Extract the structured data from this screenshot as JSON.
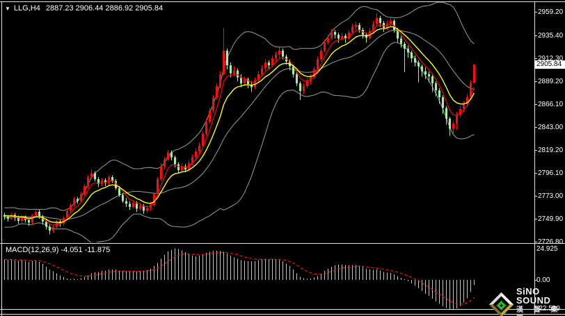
{
  "title": {
    "icon": "▼",
    "symbol_period": "LLG,H4",
    "ohlc_text": "2887.23 2906.44 2886.92 2905.84"
  },
  "macd_panel": {
    "label": "MACD(12,26,9) -4.051 -11.875",
    "scale_max": "24.925",
    "scale_zero": "0.00",
    "scale_min": "-22.529"
  },
  "price_axis": {
    "ticks": [
      "2959.20",
      "2935.40",
      "2912.30",
      "2889.20",
      "2866.10",
      "2843.00",
      "2819.20",
      "2796.10",
      "2773.00",
      "2749.90",
      "2726.80"
    ],
    "current": "2905.84"
  },
  "watermark": {
    "brand_en": "SiNO SOUND",
    "brand_cn": "漢 聲 集 團"
  },
  "colors": {
    "bg": "#000000",
    "up_candle": "#FF0B0B",
    "down_candle": "#9CF2A0",
    "ma_fast": "#FF0000",
    "ma_slow": "#FFFF00",
    "band": "#8F8F8F",
    "hist": "#C8C8C8",
    "signal": "#FF1111",
    "axis_text": "#FFFFFF",
    "frame": "#E6E6E6",
    "price_tag_bg": "#FFFFFF",
    "price_tag_text": "#000000"
  },
  "chart_data": {
    "type": "candlestick",
    "symbol": "LLG",
    "timeframe": "H4",
    "last_bar": {
      "open": 2887.23,
      "high": 2906.44,
      "low": 2886.92,
      "close": 2905.84
    },
    "price_axis": {
      "max": 2959.2,
      "min": 2726.8
    },
    "macd_axis": {
      "max": 24.925,
      "zero": 0.0,
      "min": -22.529
    },
    "indicators": {
      "bollinger_period": 20,
      "bollinger_dev": 2,
      "ma_fast_period": 5,
      "ma_slow_period": 10,
      "macd_params": [
        12,
        26,
        9
      ],
      "macd_value": -4.051,
      "macd_signal": -11.875
    },
    "history_closes": [
      2768,
      2765,
      2770,
      2762,
      2758,
      2763,
      2755,
      2748,
      2752,
      2745,
      2740,
      2746,
      2752,
      2757,
      2750,
      2744,
      2748,
      2754,
      2758,
      2753,
      2749,
      2755,
      2760,
      2756,
      2751,
      2754
    ],
    "candles": [
      [
        2754,
        2756,
        2749,
        2752
      ],
      [
        2752,
        2754,
        2747,
        2750
      ],
      [
        2750,
        2756,
        2749,
        2754
      ],
      [
        2754,
        2756,
        2748,
        2751
      ],
      [
        2751,
        2753,
        2745,
        2748
      ],
      [
        2748,
        2754,
        2746,
        2752
      ],
      [
        2752,
        2753,
        2746,
        2749
      ],
      [
        2749,
        2751,
        2743,
        2746
      ],
      [
        2746,
        2755,
        2744,
        2753
      ],
      [
        2753,
        2760,
        2751,
        2757
      ],
      [
        2757,
        2759,
        2750,
        2752
      ],
      [
        2752,
        2754,
        2744,
        2747
      ],
      [
        2747,
        2749,
        2739,
        2742
      ],
      [
        2742,
        2744,
        2734,
        2738
      ],
      [
        2738,
        2744,
        2736,
        2742
      ],
      [
        2742,
        2749,
        2740,
        2747
      ],
      [
        2747,
        2749,
        2742,
        2745
      ],
      [
        2745,
        2753,
        2743,
        2751
      ],
      [
        2751,
        2760,
        2749,
        2758
      ],
      [
        2758,
        2766,
        2756,
        2764
      ],
      [
        2764,
        2772,
        2762,
        2770
      ],
      [
        2770,
        2772,
        2765,
        2768
      ],
      [
        2768,
        2777,
        2766,
        2775
      ],
      [
        2775,
        2785,
        2773,
        2783
      ],
      [
        2783,
        2794,
        2781,
        2792
      ],
      [
        2792,
        2800,
        2790,
        2796
      ],
      [
        2796,
        2798,
        2788,
        2790
      ],
      [
        2790,
        2792,
        2782,
        2785
      ],
      [
        2785,
        2791,
        2783,
        2789
      ],
      [
        2789,
        2791,
        2783,
        2786
      ],
      [
        2786,
        2794,
        2784,
        2792
      ],
      [
        2792,
        2794,
        2786,
        2788
      ],
      [
        2788,
        2790,
        2779,
        2781
      ],
      [
        2781,
        2783,
        2772,
        2774
      ],
      [
        2774,
        2776,
        2766,
        2768
      ],
      [
        2768,
        2771,
        2762,
        2765
      ],
      [
        2765,
        2768,
        2759,
        2762
      ],
      [
        2762,
        2768,
        2760,
        2766
      ],
      [
        2766,
        2768,
        2757,
        2760
      ],
      [
        2760,
        2766,
        2758,
        2763
      ],
      [
        2763,
        2765,
        2755,
        2758
      ],
      [
        2758,
        2764,
        2756,
        2761
      ],
      [
        2761,
        2767,
        2758,
        2764
      ],
      [
        2764,
        2777,
        2762,
        2775
      ],
      [
        2775,
        2792,
        2773,
        2790
      ],
      [
        2790,
        2806,
        2788,
        2803
      ],
      [
        2803,
        2812,
        2800,
        2810
      ],
      [
        2810,
        2820,
        2808,
        2817
      ],
      [
        2817,
        2819,
        2809,
        2812
      ],
      [
        2812,
        2814,
        2802,
        2805
      ],
      [
        2805,
        2807,
        2796,
        2799
      ],
      [
        2799,
        2806,
        2797,
        2803
      ],
      [
        2803,
        2805,
        2797,
        2800
      ],
      [
        2800,
        2809,
        2798,
        2806
      ],
      [
        2806,
        2815,
        2804,
        2812
      ],
      [
        2812,
        2821,
        2810,
        2818
      ],
      [
        2818,
        2827,
        2816,
        2824
      ],
      [
        2824,
        2839,
        2822,
        2836
      ],
      [
        2836,
        2851,
        2834,
        2848
      ],
      [
        2848,
        2862,
        2846,
        2859
      ],
      [
        2859,
        2875,
        2857,
        2872
      ],
      [
        2872,
        2887,
        2870,
        2884
      ],
      [
        2884,
        2899,
        2882,
        2896
      ],
      [
        2896,
        2943,
        2894,
        2920
      ],
      [
        2920,
        2922,
        2901,
        2905
      ],
      [
        2905,
        2908,
        2893,
        2897
      ],
      [
        2897,
        2904,
        2894,
        2900
      ],
      [
        2900,
        2902,
        2889,
        2893
      ],
      [
        2893,
        2896,
        2883,
        2887
      ],
      [
        2887,
        2894,
        2884,
        2891
      ],
      [
        2891,
        2893,
        2882,
        2886
      ],
      [
        2886,
        2889,
        2878,
        2883
      ],
      [
        2883,
        2893,
        2881,
        2890
      ],
      [
        2890,
        2899,
        2888,
        2896
      ],
      [
        2896,
        2905,
        2894,
        2902
      ],
      [
        2902,
        2911,
        2900,
        2908
      ],
      [
        2908,
        2910,
        2901,
        2905
      ],
      [
        2905,
        2915,
        2903,
        2912
      ],
      [
        2912,
        2919,
        2909,
        2916
      ],
      [
        2916,
        2923,
        2913,
        2920
      ],
      [
        2920,
        2922,
        2911,
        2914
      ],
      [
        2914,
        2916,
        2906,
        2909
      ],
      [
        2909,
        2911,
        2900,
        2904
      ],
      [
        2904,
        2906,
        2893,
        2896
      ],
      [
        2896,
        2898,
        2884,
        2887
      ],
      [
        2887,
        2889,
        2870,
        2879
      ],
      [
        2879,
        2887,
        2876,
        2884
      ],
      [
        2884,
        2892,
        2882,
        2889
      ],
      [
        2889,
        2896,
        2886,
        2893
      ],
      [
        2893,
        2904,
        2891,
        2901
      ],
      [
        2901,
        2914,
        2899,
        2911
      ],
      [
        2911,
        2923,
        2909,
        2920
      ],
      [
        2920,
        2931,
        2918,
        2928
      ],
      [
        2928,
        2936,
        2926,
        2933
      ],
      [
        2933,
        2942,
        2931,
        2939
      ],
      [
        2939,
        2941,
        2932,
        2936
      ],
      [
        2936,
        2938,
        2928,
        2932
      ],
      [
        2932,
        2938,
        2930,
        2935
      ],
      [
        2935,
        2937,
        2928,
        2932
      ],
      [
        2932,
        2941,
        2930,
        2938
      ],
      [
        2938,
        2947,
        2936,
        2944
      ],
      [
        2944,
        2949,
        2941,
        2946
      ],
      [
        2946,
        2948,
        2938,
        2941
      ],
      [
        2941,
        2943,
        2932,
        2936
      ],
      [
        2936,
        2938,
        2928,
        2933
      ],
      [
        2933,
        2943,
        2931,
        2940
      ],
      [
        2940,
        2950,
        2938,
        2947
      ],
      [
        2947,
        2958,
        2945,
        2953
      ],
      [
        2953,
        2955,
        2944,
        2948
      ],
      [
        2948,
        2950,
        2939,
        2943
      ],
      [
        2943,
        2950,
        2941,
        2947
      ],
      [
        2947,
        2953,
        2944,
        2950
      ],
      [
        2950,
        2952,
        2938,
        2941
      ],
      [
        2941,
        2943,
        2928,
        2932
      ],
      [
        2932,
        2935,
        2923,
        2927
      ],
      [
        2927,
        2929,
        2898,
        2922
      ],
      [
        2922,
        2925,
        2913,
        2918
      ],
      [
        2918,
        2920,
        2908,
        2912
      ],
      [
        2912,
        2915,
        2904,
        2908
      ],
      [
        2908,
        2910,
        2888,
        2904
      ],
      [
        2904,
        2906,
        2894,
        2899
      ],
      [
        2899,
        2903,
        2891,
        2896
      ],
      [
        2896,
        2899,
        2888,
        2894
      ],
      [
        2894,
        2896,
        2878,
        2887
      ],
      [
        2887,
        2889,
        2874,
        2880
      ],
      [
        2880,
        2882,
        2866,
        2873
      ],
      [
        2873,
        2875,
        2856,
        2862
      ],
      [
        2862,
        2864,
        2845,
        2851
      ],
      [
        2851,
        2853,
        2834,
        2841
      ],
      [
        2841,
        2849,
        2836,
        2846
      ],
      [
        2846,
        2858,
        2840,
        2855
      ],
      [
        2855,
        2864,
        2852,
        2861
      ],
      [
        2861,
        2869,
        2858,
        2866
      ],
      [
        2866,
        2876,
        2863,
        2873
      ],
      [
        2873,
        2890,
        2871,
        2887
      ],
      [
        2887.23,
        2906.44,
        2886.92,
        2905.84
      ]
    ],
    "macd_histogram": [
      15.5,
      15.2,
      15.6,
      14.8,
      14.5,
      14.9,
      14.2,
      13.6,
      14.4,
      15.0,
      13.8,
      12.0,
      10.0,
      8.0,
      6.5,
      5.0,
      3.5,
      2.0,
      1.0,
      0.5,
      0.8,
      0.6,
      1.2,
      2.2,
      3.5,
      5.0,
      5.8,
      6.0,
      6.8,
      7.0,
      7.8,
      8.0,
      7.8,
      7.2,
      6.8,
      6.5,
      6.2,
      6.6,
      6.4,
      6.8,
      7.0,
      7.5,
      8.5,
      10.5,
      13.0,
      16.0,
      19.0,
      21.5,
      23.0,
      24.0,
      23.5,
      22.5,
      21.0,
      19.5,
      18.5,
      18.0,
      18.5,
      19.5,
      20.5,
      21.3,
      21.8,
      22.0,
      21.8,
      21.2,
      20.0,
      18.5,
      17.2,
      16.0,
      15.0,
      14.5,
      14.2,
      14.0,
      14.3,
      14.8,
      15.4,
      15.8,
      15.6,
      15.8,
      15.5,
      15.0,
      14.0,
      12.5,
      10.5,
      8.0,
      5.0,
      2.5,
      1.2,
      0.8,
      1.0,
      1.8,
      3.0,
      4.8,
      6.8,
      8.5,
      10.0,
      11.0,
      11.5,
      11.6,
      11.2,
      11.0,
      11.2,
      11.3,
      10.8,
      9.8,
      8.5,
      7.8,
      7.6,
      7.8,
      7.0,
      6.0,
      5.5,
      5.2,
      4.2,
      3.0,
      1.6,
      0.4,
      -1.0,
      -2.6,
      -4.4,
      -6.4,
      -8.4,
      -10.4,
      -12.2,
      -14.2,
      -16.2,
      -18.2,
      -20.0,
      -21.3,
      -22.2,
      -22.5,
      -21.6,
      -19.8,
      -17.2,
      -14.0,
      -9.2,
      -4.051
    ]
  }
}
